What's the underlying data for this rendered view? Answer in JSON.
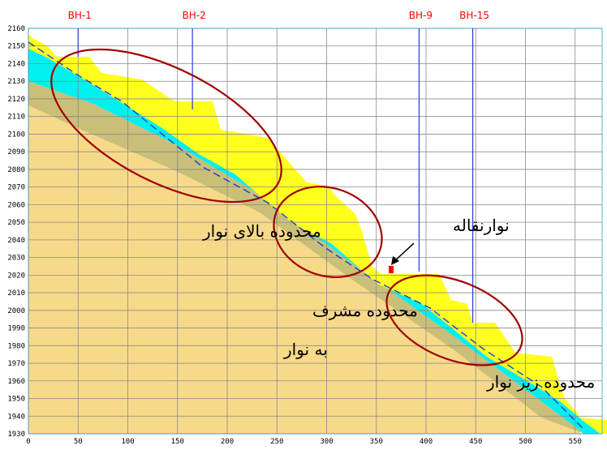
{
  "boreholes": [
    {
      "label": "BH-1",
      "x": 50
    },
    {
      "label": "BH-2",
      "x": 165
    },
    {
      "label": "BH-9",
      "x": 393
    },
    {
      "label": "BH-15",
      "x": 447
    }
  ],
  "axes": {
    "x_ticks": [
      "0",
      "50",
      "100",
      "150",
      "200",
      "250",
      "300",
      "350",
      "400",
      "450",
      "500",
      "550"
    ],
    "y_ticks": [
      "2160",
      "2150",
      "2140",
      "2130",
      "2120",
      "2110",
      "2100",
      "2090",
      "2080",
      "2070",
      "2060",
      "2050",
      "2040",
      "2030",
      "2020",
      "2010",
      "2000",
      "1990",
      "1980",
      "1970",
      "1960",
      "1950",
      "1940",
      "1930"
    ]
  },
  "labels": {
    "zone_above": "محدوده بالای نوار",
    "zone_overlook_line1": "محدوده مشرف",
    "zone_overlook_line2": "به نوار",
    "zone_below": "محدوده زیر نوار",
    "conveyor": "نوارنقاله"
  },
  "colors": {
    "ground_tan": "#f7d98a",
    "shadow_olive": "#c9bf78",
    "cyan_layer": "#00f0f0",
    "yellow_layer": "#ffff1e",
    "ellipse": "#a00000",
    "borehole": "#2a3adb",
    "grid": "#8a8a8a"
  }
}
